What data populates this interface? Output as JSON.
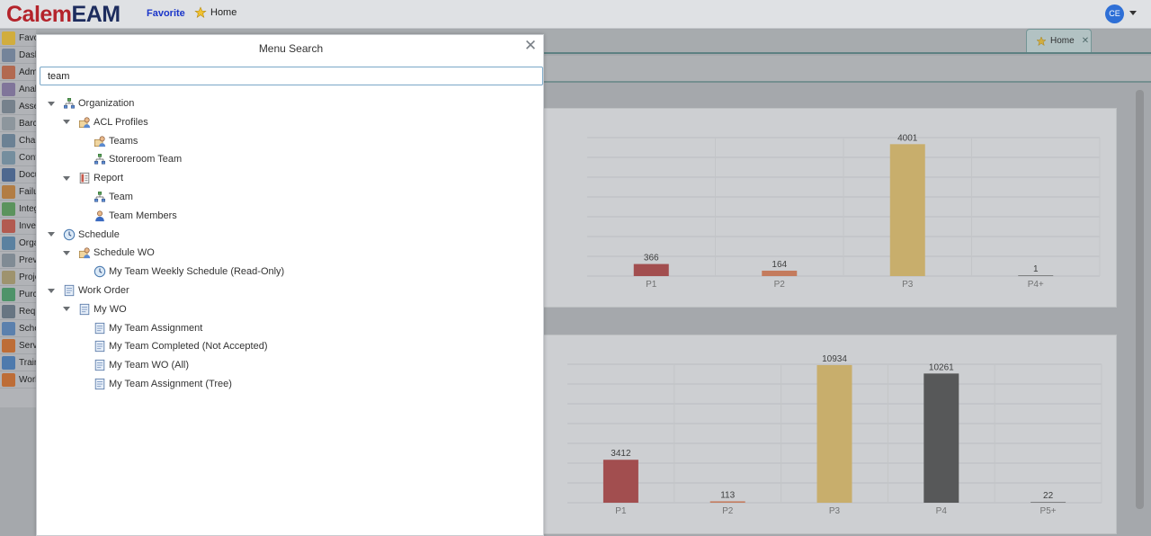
{
  "app": {
    "logo_calem": "Calem",
    "logo_eam": "EAM",
    "favorite_link": "Favorite",
    "home_link": "Home",
    "avatar_initials": "CE"
  },
  "nav": {
    "items": [
      {
        "label": "Favorites",
        "icon": "star-icon"
      },
      {
        "label": "Dashboard",
        "icon": "dashboard-icon"
      },
      {
        "label": "Admin",
        "icon": "admin-icon"
      },
      {
        "label": "Analytics",
        "icon": "analytics-icon"
      },
      {
        "label": "Assets",
        "icon": "assets-icon"
      },
      {
        "label": "Barcode",
        "icon": "barcode-icon"
      },
      {
        "label": "Charts",
        "icon": "chart-icon"
      },
      {
        "label": "Contacts",
        "icon": "contacts-icon"
      },
      {
        "label": "Documents",
        "icon": "document-icon"
      },
      {
        "label": "Failure",
        "icon": "failure-icon"
      },
      {
        "label": "Integration",
        "icon": "integration-icon"
      },
      {
        "label": "Inventory",
        "icon": "inventory-icon"
      },
      {
        "label": "Organization",
        "icon": "organization-icon"
      },
      {
        "label": "Preventive",
        "icon": "preventive-icon"
      },
      {
        "label": "Projects",
        "icon": "project-icon"
      },
      {
        "label": "Purchase",
        "icon": "purchase-icon"
      },
      {
        "label": "Requests",
        "icon": "request-icon"
      },
      {
        "label": "Schedule",
        "icon": "schedule-icon"
      },
      {
        "label": "Service",
        "icon": "service-icon"
      },
      {
        "label": "Training",
        "icon": "training-icon"
      },
      {
        "label": "Work Order",
        "icon": "workorder-icon"
      }
    ]
  },
  "tabs": {
    "home_label": "Home"
  },
  "modal": {
    "title": "Menu Search",
    "search_value": "team",
    "tree": [
      {
        "label": "Organization",
        "level": 0,
        "expanded": true,
        "icon": "organization-icon"
      },
      {
        "label": "ACL Profiles",
        "level": 1,
        "expanded": true,
        "icon": "acl-profile-icon"
      },
      {
        "label": "Teams",
        "level": 2,
        "icon": "teams-icon"
      },
      {
        "label": "Storeroom Team",
        "level": 2,
        "icon": "storeroom-team-icon"
      },
      {
        "label": "Report",
        "level": 1,
        "expanded": true,
        "icon": "report-icon"
      },
      {
        "label": "Team",
        "level": 2,
        "icon": "team-icon"
      },
      {
        "label": "Team Members",
        "level": 2,
        "icon": "team-members-icon"
      },
      {
        "label": "Schedule",
        "level": 0,
        "expanded": true,
        "icon": "schedule-icon"
      },
      {
        "label": "Schedule WO",
        "level": 1,
        "expanded": true,
        "icon": "schedule-wo-icon"
      },
      {
        "label": "My Team Weekly Schedule (Read-Only)",
        "level": 2,
        "icon": "clock-icon"
      },
      {
        "label": "Work Order",
        "level": 0,
        "expanded": true,
        "icon": "work-order-icon"
      },
      {
        "label": "My WO",
        "level": 1,
        "expanded": true,
        "icon": "work-order-icon"
      },
      {
        "label": "My Team Assignment",
        "level": 2,
        "icon": "work-order-icon"
      },
      {
        "label": "My Team Completed (Not Accepted)",
        "level": 2,
        "icon": "work-order-icon"
      },
      {
        "label": "My Team WO (All)",
        "level": 2,
        "icon": "work-order-icon"
      },
      {
        "label": "My Team Assignment (Tree)",
        "level": 2,
        "icon": "work-order-icon"
      }
    ]
  },
  "chart_data": [
    {
      "type": "bar",
      "categories": [
        "P1",
        "P2",
        "P3",
        "P4+"
      ],
      "values": [
        366,
        164,
        4001,
        1
      ],
      "colors": [
        "#b54848",
        "#e0825a",
        "#e6c36e",
        "#888888"
      ],
      "ylim": [
        0,
        4200
      ]
    },
    {
      "type": "bar",
      "categories": [
        "P1",
        "P2",
        "P3",
        "P4",
        "P5+"
      ],
      "values": [
        3412,
        113,
        10934,
        10261,
        22
      ],
      "colors": [
        "#b54848",
        "#e0825a",
        "#e6c36e",
        "#555555",
        "#888888"
      ],
      "ylim": [
        0,
        11000
      ]
    }
  ]
}
